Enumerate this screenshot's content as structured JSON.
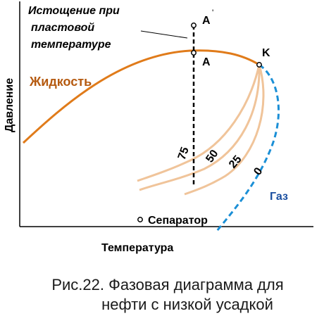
{
  "diagram": {
    "annotation": [
      "Истощение при",
      "пластовой",
      "температуре"
    ],
    "point_upper_label": "A",
    "point_upper_mark": "'",
    "point_lower_label": "A",
    "critical_label": "K",
    "liquid_label": "Жидкость",
    "gas_label": "Газ",
    "separator_label": "Сепаратор",
    "y_axis_label": "Давление",
    "x_axis_label": "Температура",
    "quality_lines": [
      "75",
      "50",
      "25",
      "0"
    ],
    "colors": {
      "bubble_curve": "#e07b1a",
      "quality_curves": "#f0c49a",
      "dew_curve": "#1b8fd6",
      "liquid_text": "#b55a10",
      "gas_text": "#1a4fa0",
      "axis": "#000000"
    }
  },
  "caption": {
    "line1": "Рис.22. Фазовая диаграмма для",
    "line2": "нефти с низкой усадкой"
  }
}
